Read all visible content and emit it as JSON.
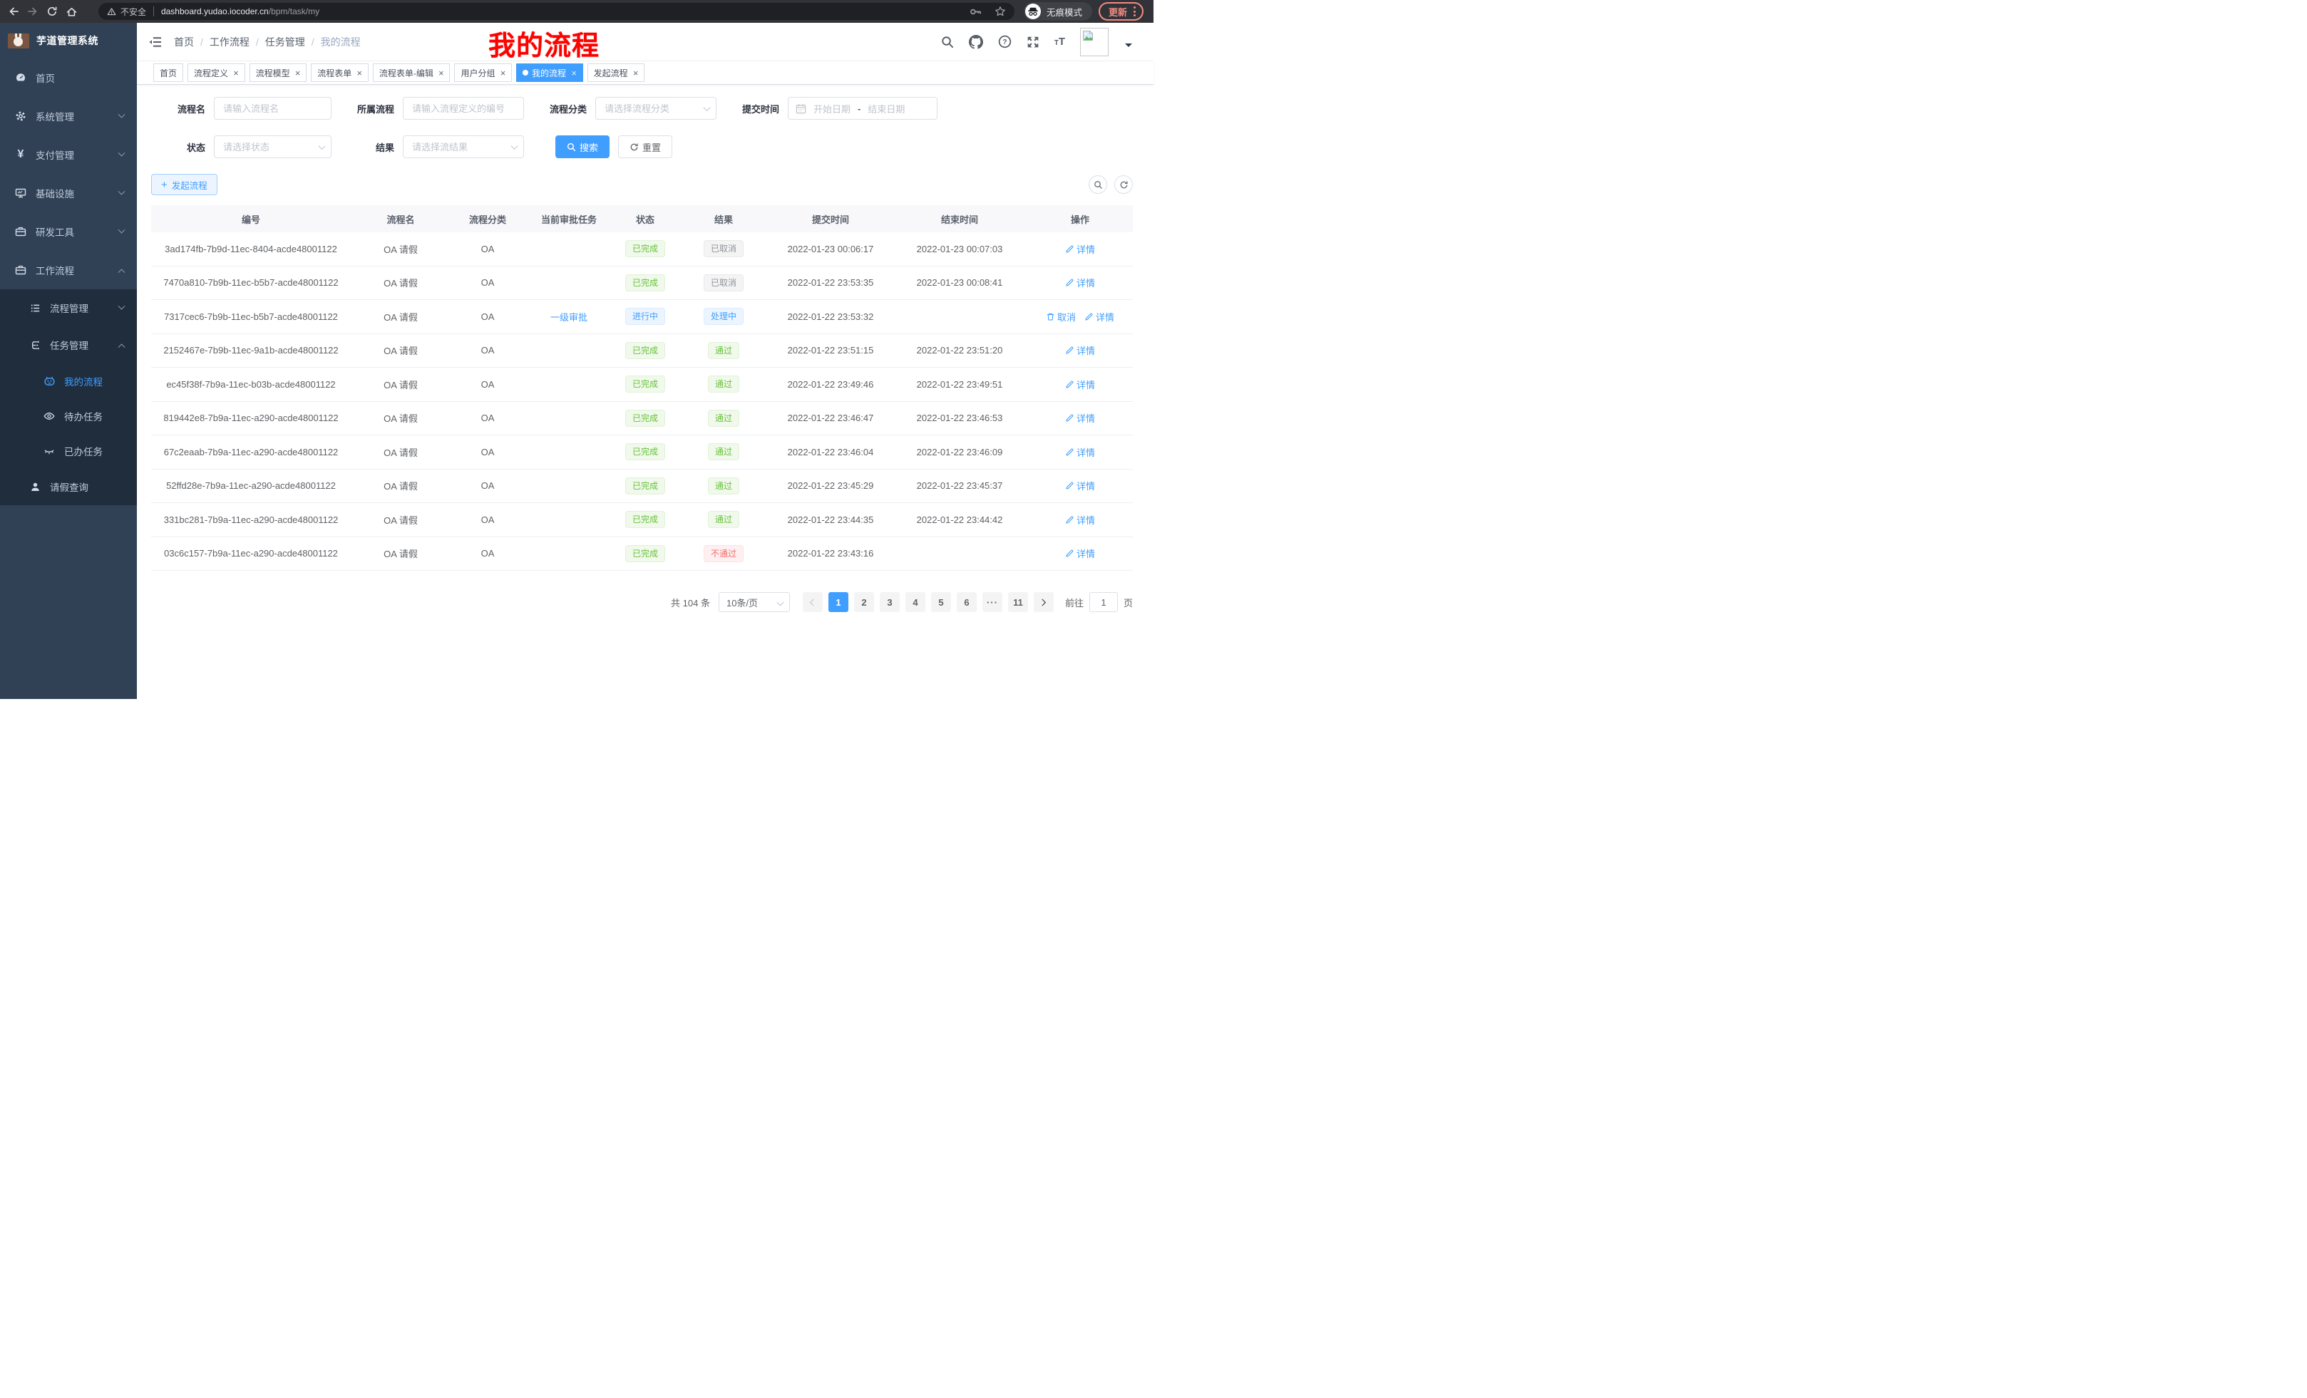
{
  "browser": {
    "security_label": "不安全",
    "url_host": "dashboard.yudao.iocoder.cn",
    "url_path": "/bpm/task/my",
    "incognito_label": "无痕模式",
    "update_label": "更新"
  },
  "overlay": {
    "text": "我的流程",
    "color": "#fb0300"
  },
  "sidebar": {
    "app_title": "芋道管理系统",
    "home": "首页",
    "system": "系统管理",
    "payment": "支付管理",
    "infra": "基础设施",
    "devtools": "研发工具",
    "workflow": "工作流程",
    "process_mgmt": "流程管理",
    "task_mgmt": "任务管理",
    "my_process": "我的流程",
    "todo_tasks": "待办任务",
    "done_tasks": "已办任务",
    "leave_query": "请假查询"
  },
  "navbar": {
    "breadcrumb": [
      "首页",
      "工作流程",
      "任务管理",
      "我的流程"
    ]
  },
  "tabs": {
    "items": [
      {
        "label": "首页",
        "closable": false,
        "active": false
      },
      {
        "label": "流程定义",
        "closable": true,
        "active": false
      },
      {
        "label": "流程模型",
        "closable": true,
        "active": false
      },
      {
        "label": "流程表单",
        "closable": true,
        "active": false
      },
      {
        "label": "流程表单-编辑",
        "closable": true,
        "active": false
      },
      {
        "label": "用户分组",
        "closable": true,
        "active": false
      },
      {
        "label": "我的流程",
        "closable": true,
        "active": true
      },
      {
        "label": "发起流程",
        "closable": true,
        "active": false
      }
    ]
  },
  "filters": {
    "process_name": {
      "label": "流程名",
      "placeholder": "请输入流程名"
    },
    "process_def": {
      "label": "所属流程",
      "placeholder": "请输入流程定义的编号"
    },
    "category": {
      "label": "流程分类",
      "placeholder": "请选择流程分类"
    },
    "submit_time": {
      "label": "提交时间",
      "start_placeholder": "开始日期",
      "separator": "-",
      "end_placeholder": "结束日期"
    },
    "status": {
      "label": "状态",
      "placeholder": "请选择状态"
    },
    "result": {
      "label": "结果",
      "placeholder": "请选择流结果"
    },
    "search_label": "搜索",
    "reset_label": "重置"
  },
  "toolbar": {
    "create_label": "发起流程"
  },
  "table": {
    "headers": [
      "编号",
      "流程名",
      "流程分类",
      "当前审批任务",
      "状态",
      "结果",
      "提交时间",
      "结束时间",
      "操作"
    ],
    "action_colors": {
      "link": "#409eff"
    },
    "rows": [
      {
        "id": "3ad174fb-7b9d-11ec-8404-acde48001122",
        "name": "OA 请假",
        "category": "OA",
        "current_task": "",
        "status": {
          "label": "已完成",
          "type": "success"
        },
        "result": {
          "label": "已取消",
          "type": "info"
        },
        "submit_time": "2022-01-23 00:06:17",
        "end_time": "2022-01-23 00:07:03",
        "actions": [
          {
            "label": "详情",
            "icon": "edit-icon"
          }
        ]
      },
      {
        "id": "7470a810-7b9b-11ec-b5b7-acde48001122",
        "name": "OA 请假",
        "category": "OA",
        "current_task": "",
        "status": {
          "label": "已完成",
          "type": "success"
        },
        "result": {
          "label": "已取消",
          "type": "info"
        },
        "submit_time": "2022-01-22 23:53:35",
        "end_time": "2022-01-23 00:08:41",
        "actions": [
          {
            "label": "详情",
            "icon": "edit-icon"
          }
        ]
      },
      {
        "id": "7317cec6-7b9b-11ec-b5b7-acde48001122",
        "name": "OA 请假",
        "category": "OA",
        "current_task": "一级审批",
        "status": {
          "label": "进行中",
          "type": "primary"
        },
        "result": {
          "label": "处理中",
          "type": "primary"
        },
        "submit_time": "2022-01-22 23:53:32",
        "end_time": "",
        "actions": [
          {
            "label": "取消",
            "icon": "delete-icon"
          },
          {
            "label": "详情",
            "icon": "edit-icon"
          }
        ]
      },
      {
        "id": "2152467e-7b9b-11ec-9a1b-acde48001122",
        "name": "OA 请假",
        "category": "OA",
        "current_task": "",
        "status": {
          "label": "已完成",
          "type": "success"
        },
        "result": {
          "label": "通过",
          "type": "success"
        },
        "submit_time": "2022-01-22 23:51:15",
        "end_time": "2022-01-22 23:51:20",
        "actions": [
          {
            "label": "详情",
            "icon": "edit-icon"
          }
        ]
      },
      {
        "id": "ec45f38f-7b9a-11ec-b03b-acde48001122",
        "name": "OA 请假",
        "category": "OA",
        "current_task": "",
        "status": {
          "label": "已完成",
          "type": "success"
        },
        "result": {
          "label": "通过",
          "type": "success"
        },
        "submit_time": "2022-01-22 23:49:46",
        "end_time": "2022-01-22 23:49:51",
        "actions": [
          {
            "label": "详情",
            "icon": "edit-icon"
          }
        ]
      },
      {
        "id": "819442e8-7b9a-11ec-a290-acde48001122",
        "name": "OA 请假",
        "category": "OA",
        "current_task": "",
        "status": {
          "label": "已完成",
          "type": "success"
        },
        "result": {
          "label": "通过",
          "type": "success"
        },
        "submit_time": "2022-01-22 23:46:47",
        "end_time": "2022-01-22 23:46:53",
        "actions": [
          {
            "label": "详情",
            "icon": "edit-icon"
          }
        ]
      },
      {
        "id": "67c2eaab-7b9a-11ec-a290-acde48001122",
        "name": "OA 请假",
        "category": "OA",
        "current_task": "",
        "status": {
          "label": "已完成",
          "type": "success"
        },
        "result": {
          "label": "通过",
          "type": "success"
        },
        "submit_time": "2022-01-22 23:46:04",
        "end_time": "2022-01-22 23:46:09",
        "actions": [
          {
            "label": "详情",
            "icon": "edit-icon"
          }
        ]
      },
      {
        "id": "52ffd28e-7b9a-11ec-a290-acde48001122",
        "name": "OA 请假",
        "category": "OA",
        "current_task": "",
        "status": {
          "label": "已完成",
          "type": "success"
        },
        "result": {
          "label": "通过",
          "type": "success"
        },
        "submit_time": "2022-01-22 23:45:29",
        "end_time": "2022-01-22 23:45:37",
        "actions": [
          {
            "label": "详情",
            "icon": "edit-icon"
          }
        ]
      },
      {
        "id": "331bc281-7b9a-11ec-a290-acde48001122",
        "name": "OA 请假",
        "category": "OA",
        "current_task": "",
        "status": {
          "label": "已完成",
          "type": "success"
        },
        "result": {
          "label": "通过",
          "type": "success"
        },
        "submit_time": "2022-01-22 23:44:35",
        "end_time": "2022-01-22 23:44:42",
        "actions": [
          {
            "label": "详情",
            "icon": "edit-icon"
          }
        ]
      },
      {
        "id": "03c6c157-7b9a-11ec-a290-acde48001122",
        "name": "OA 请假",
        "category": "OA",
        "current_task": "",
        "status": {
          "label": "已完成",
          "type": "success"
        },
        "result": {
          "label": "不通过",
          "type": "danger"
        },
        "submit_time": "2022-01-22 23:43:16",
        "end_time": "",
        "actions": [
          {
            "label": "详情",
            "icon": "edit-icon"
          }
        ]
      }
    ]
  },
  "pagination": {
    "total_label": "共 104 条",
    "page_size": "10条/页",
    "pages": [
      "1",
      "2",
      "3",
      "4",
      "5",
      "6",
      "···",
      "11"
    ],
    "active_page": "1",
    "goto_label": "前往",
    "goto_value": "1",
    "goto_unit": "页"
  },
  "colors": {
    "accent": "#409eff",
    "success": "#67c23a",
    "info": "#909399",
    "danger": "#f56c6c",
    "sidebar": "#304156",
    "submenu": "#1f2d3d"
  }
}
